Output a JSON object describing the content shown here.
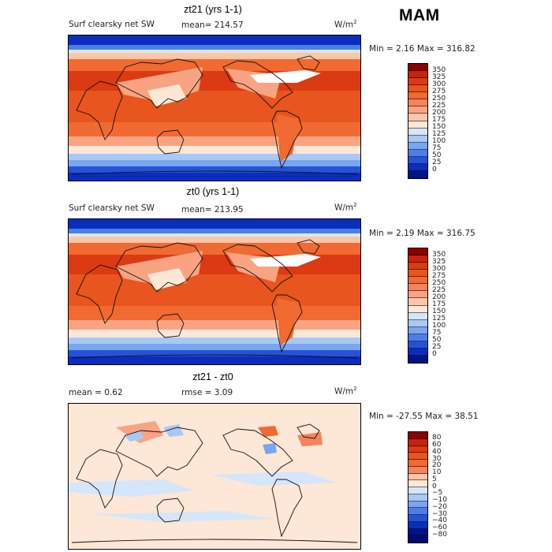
{
  "season": "MAM",
  "panels": [
    {
      "title": "zt21 (yrs 1-1)",
      "left_label": "Surf clearsky net SW",
      "center_label": "mean= 214.57",
      "units": "W/m",
      "units_sup": "2",
      "minmax": "Min =    2.16 Max = 316.82",
      "colorbar": "abs"
    },
    {
      "title": "zt0 (yrs 1-1)",
      "left_label": "Surf clearsky net SW",
      "center_label": "mean= 213.95",
      "units": "W/m",
      "units_sup": "2",
      "minmax": "Min =    2.19 Max = 316.75",
      "colorbar": "abs"
    },
    {
      "title": "zt21 - zt0",
      "left_label": "mean =    0.62",
      "center_label": "rmse =    3.09",
      "units": "W/m",
      "units_sup": "2",
      "minmax": "Min = -27.55 Max =   38.51",
      "colorbar": "diff"
    }
  ],
  "colorbars": {
    "abs": {
      "levels": [
        "350",
        "325",
        "300",
        "275",
        "250",
        "225",
        "200",
        "175",
        "150",
        "125",
        "100",
        "75",
        "50",
        "25",
        "0"
      ],
      "colors": [
        "#8b0000",
        "#c8230a",
        "#dc3a12",
        "#e8551e",
        "#f06a32",
        "#f5845a",
        "#f8a482",
        "#fbc6a8",
        "#fde7d6",
        "#d6e6fa",
        "#a8c8f5",
        "#7aa5f0",
        "#4d7ee8",
        "#2553d8",
        "#0a2ebb",
        "#00138a"
      ]
    },
    "diff": {
      "levels": [
        "80",
        "60",
        "40",
        "30",
        "20",
        "10",
        "5",
        "0",
        "−5",
        "−10",
        "−20",
        "−30",
        "−40",
        "−60",
        "−80"
      ],
      "colors": [
        "#8b0000",
        "#c8230a",
        "#dc3a12",
        "#e8551e",
        "#f06a32",
        "#f5845a",
        "#fbc6a8",
        "#fde7d6",
        "#d6e6fa",
        "#a8c8f5",
        "#7aa5f0",
        "#4d7ee8",
        "#2553d8",
        "#0a2ebb",
        "#00138a",
        "#000c70"
      ]
    }
  }
}
